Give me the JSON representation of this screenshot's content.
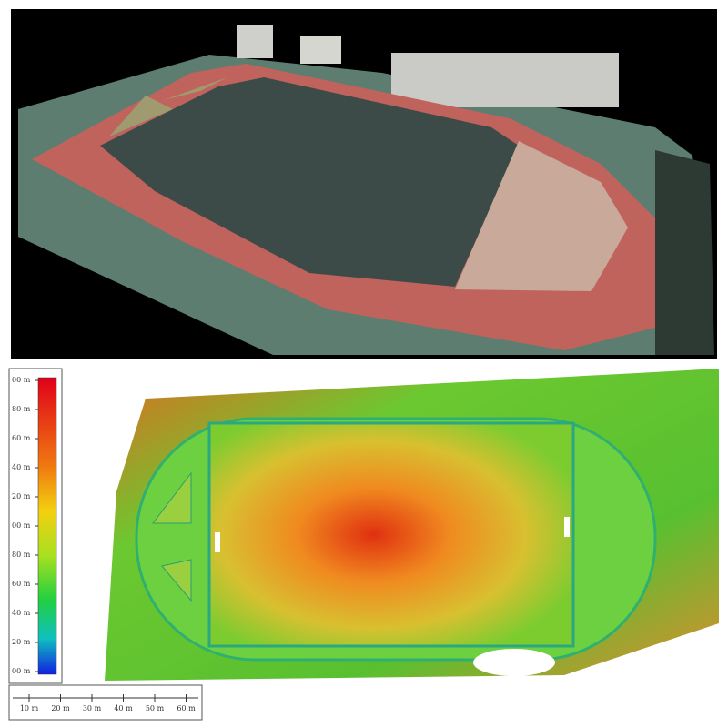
{
  "colorbar": {
    "labels": [
      "00 m",
      "80 m",
      "60 m",
      "40 m",
      "20 m",
      "00 m",
      "80 m",
      "60 m",
      "40 m",
      "20 m",
      "00 m"
    ]
  },
  "scale_bar": {
    "labels": [
      "10 m",
      "20 m",
      "30 m",
      "40 m",
      "50 m",
      "60 m"
    ]
  }
}
